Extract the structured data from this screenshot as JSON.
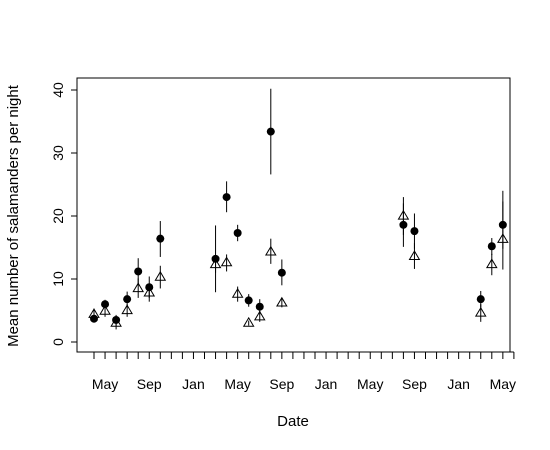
{
  "chart_data": {
    "type": "scatter",
    "title": "",
    "xlabel": "Date",
    "ylabel": "Mean number of salamanders per night",
    "ylim": [
      0,
      40
    ],
    "y_ticks": [
      0,
      10,
      20,
      30,
      40
    ],
    "x_axis": {
      "minor_tick_count": 39,
      "labels": [
        {
          "label": "May",
          "month": 1
        },
        {
          "label": "Sep",
          "month": 5
        },
        {
          "label": "Jan",
          "month": 9
        },
        {
          "label": "May",
          "month": 13
        },
        {
          "label": "Sep",
          "month": 17
        },
        {
          "label": "Jan",
          "month": 21
        },
        {
          "label": "May",
          "month": 25
        },
        {
          "label": "Sep",
          "month": 29
        },
        {
          "label": "Jan",
          "month": 33
        },
        {
          "label": "May",
          "month": 37
        }
      ]
    },
    "grid": false,
    "legend": "none",
    "series": [
      {
        "marker": "filled-circle",
        "color": "#000000",
        "points": [
          {
            "x": 0.0,
            "y": 3.7,
            "lo": 3.1,
            "hi": 4.4
          },
          {
            "x": 1.0,
            "y": 6.0,
            "lo": 5.3,
            "hi": 6.7
          },
          {
            "x": 2.0,
            "y": 3.5,
            "lo": 2.6,
            "hi": 4.3
          },
          {
            "x": 3.0,
            "y": 6.8,
            "lo": 5.6,
            "hi": 8.0
          },
          {
            "x": 4.0,
            "y": 11.2,
            "lo": 9.0,
            "hi": 13.3
          },
          {
            "x": 5.0,
            "y": 8.7,
            "lo": 7.0,
            "hi": 10.4
          },
          {
            "x": 6.0,
            "y": 16.4,
            "lo": 13.5,
            "hi": 19.2
          },
          {
            "x": 11.0,
            "y": 13.2,
            "lo": 7.9,
            "hi": 18.5
          },
          {
            "x": 12.0,
            "y": 23.0,
            "lo": 20.6,
            "hi": 25.5
          },
          {
            "x": 13.0,
            "y": 17.3,
            "lo": 16.0,
            "hi": 18.6
          },
          {
            "x": 14.0,
            "y": 6.6,
            "lo": 5.6,
            "hi": 7.6
          },
          {
            "x": 15.0,
            "y": 5.6,
            "lo": 4.4,
            "hi": 6.8
          },
          {
            "x": 16.0,
            "y": 33.4,
            "lo": 26.6,
            "hi": 40.2
          },
          {
            "x": 17.0,
            "y": 11.0,
            "lo": 9.0,
            "hi": 13.1
          },
          {
            "x": 28.0,
            "y": 18.6,
            "lo": 15.1,
            "hi": 22.0
          },
          {
            "x": 29.0,
            "y": 17.6,
            "lo": 14.8,
            "hi": 20.4
          },
          {
            "x": 35.0,
            "y": 6.8,
            "lo": 5.5,
            "hi": 8.1
          },
          {
            "x": 36.0,
            "y": 15.2,
            "lo": 13.8,
            "hi": 16.5
          },
          {
            "x": 37.0,
            "y": 18.6,
            "lo": 14.8,
            "hi": 22.3
          }
        ]
      },
      {
        "marker": "open-triangle",
        "color": "#000000",
        "points": [
          {
            "x": 0.0,
            "y": 4.4,
            "lo": 3.5,
            "hi": 5.3
          },
          {
            "x": 1.0,
            "y": 4.9,
            "lo": 4.0,
            "hi": 5.8
          },
          {
            "x": 2.0,
            "y": 3.0,
            "lo": 2.0,
            "hi": 3.9
          },
          {
            "x": 3.0,
            "y": 5.0,
            "lo": 4.0,
            "hi": 6.0
          },
          {
            "x": 4.0,
            "y": 8.5,
            "lo": 7.0,
            "hi": 10.1
          },
          {
            "x": 5.0,
            "y": 7.8,
            "lo": 6.4,
            "hi": 9.2
          },
          {
            "x": 6.0,
            "y": 10.3,
            "lo": 8.5,
            "hi": 12.1
          },
          {
            "x": 11.0,
            "y": 12.3,
            "lo": 11.0,
            "hi": 13.6
          },
          {
            "x": 12.0,
            "y": 12.6,
            "lo": 11.2,
            "hi": 13.9
          },
          {
            "x": 13.0,
            "y": 7.6,
            "lo": 6.4,
            "hi": 8.8
          },
          {
            "x": 14.0,
            "y": 3.0,
            "lo": 2.6,
            "hi": 3.4
          },
          {
            "x": 15.0,
            "y": 4.0,
            "lo": 3.2,
            "hi": 4.9
          },
          {
            "x": 16.0,
            "y": 14.3,
            "lo": 12.4,
            "hi": 16.4
          },
          {
            "x": 17.0,
            "y": 6.2,
            "lo": 5.5,
            "hi": 6.9
          },
          {
            "x": 28.0,
            "y": 20.0,
            "lo": 17.0,
            "hi": 23.0
          },
          {
            "x": 29.0,
            "y": 13.6,
            "lo": 11.6,
            "hi": 15.7
          },
          {
            "x": 35.0,
            "y": 4.6,
            "lo": 3.2,
            "hi": 6.0
          },
          {
            "x": 36.0,
            "y": 12.3,
            "lo": 10.6,
            "hi": 14.0
          },
          {
            "x": 37.0,
            "y": 16.3,
            "lo": 11.5,
            "hi": 24.0
          }
        ]
      }
    ]
  }
}
